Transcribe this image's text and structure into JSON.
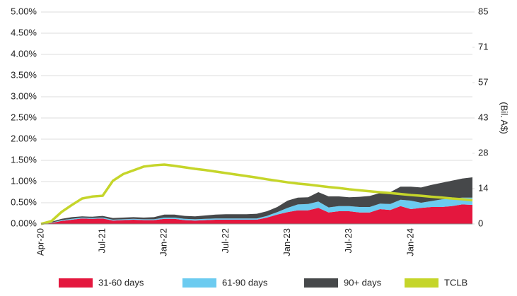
{
  "chart_data": {
    "type": "stacked-area-line",
    "y_axis_label": "(Bil. A$)",
    "categories": [
      "Apr-20",
      null,
      null,
      null,
      null,
      null,
      "Jul-21",
      null,
      null,
      null,
      null,
      null,
      "Jan-22",
      null,
      null,
      null,
      null,
      null,
      "Jul-22",
      null,
      null,
      null,
      null,
      null,
      "Jan-23",
      null,
      null,
      null,
      null,
      null,
      "Jul-23",
      null,
      null,
      null,
      null,
      null,
      "Jan-24",
      null,
      null,
      null,
      null,
      null,
      null
    ],
    "series": [
      {
        "name": "31-60 days",
        "color": "#e4173e",
        "kind": "area",
        "values": [
          0,
          0.02,
          0.07,
          0.1,
          0.13,
          0.12,
          0.13,
          0.08,
          0.09,
          0.1,
          0.09,
          0.09,
          0.12,
          0.12,
          0.09,
          0.08,
          0.09,
          0.1,
          0.1,
          0.1,
          0.1,
          0.1,
          0.15,
          0.22,
          0.28,
          0.32,
          0.32,
          0.38,
          0.27,
          0.3,
          0.3,
          0.27,
          0.27,
          0.35,
          0.33,
          0.42,
          0.35,
          0.38,
          0.4,
          0.4,
          0.42,
          0.46,
          0.45
        ]
      },
      {
        "name": "61-90 days",
        "color": "#6ccbf0",
        "kind": "area",
        "values": [
          0,
          0.01,
          0.02,
          0.02,
          0.02,
          0.02,
          0.02,
          0.02,
          0.02,
          0.02,
          0.02,
          0.02,
          0.03,
          0.03,
          0.03,
          0.03,
          0.03,
          0.03,
          0.03,
          0.03,
          0.03,
          0.03,
          0.04,
          0.06,
          0.1,
          0.14,
          0.15,
          0.15,
          0.12,
          0.12,
          0.12,
          0.13,
          0.13,
          0.13,
          0.14,
          0.15,
          0.2,
          0.12,
          0.14,
          0.18,
          0.18,
          0.16,
          0.17
        ]
      },
      {
        "name": "90+ days",
        "color": "#46484a",
        "kind": "area",
        "values": [
          0,
          0.02,
          0.03,
          0.04,
          0.03,
          0.03,
          0.04,
          0.04,
          0.04,
          0.04,
          0.04,
          0.05,
          0.07,
          0.07,
          0.07,
          0.07,
          0.08,
          0.09,
          0.1,
          0.1,
          0.1,
          0.11,
          0.11,
          0.12,
          0.17,
          0.16,
          0.16,
          0.22,
          0.26,
          0.23,
          0.21,
          0.24,
          0.26,
          0.25,
          0.28,
          0.31,
          0.33,
          0.36,
          0.38,
          0.39,
          0.42,
          0.45,
          0.48
        ]
      },
      {
        "name": "TCLB",
        "color": "#c5d52a",
        "kind": "line",
        "axis": "y2",
        "values": [
          0,
          1.1,
          4.8,
          7.6,
          10.2,
          11,
          11.3,
          17.3,
          20,
          21.5,
          23,
          23.5,
          23.8,
          23.3,
          22.7,
          22.1,
          21.6,
          21.0,
          20.4,
          19.8,
          19.2,
          18.6,
          17.9,
          17.3,
          16.7,
          16.2,
          15.8,
          15.3,
          14.8,
          14.4,
          13.9,
          13.5,
          13.1,
          12.7,
          12.4,
          12.0,
          11.6,
          11.3,
          10.9,
          10.6,
          10.2,
          9.9,
          9.5
        ]
      }
    ],
    "ylim": [
      0,
      5
    ],
    "yticks": [
      {
        "value": 0,
        "label": "0.00%"
      },
      {
        "value": 0.5,
        "label": "0.50%"
      },
      {
        "value": 1,
        "label": "1.00%"
      },
      {
        "value": 1.5,
        "label": "1.50%"
      },
      {
        "value": 2,
        "label": "2.00%"
      },
      {
        "value": 2.5,
        "label": "2.50%"
      },
      {
        "value": 3,
        "label": "3.00%"
      },
      {
        "value": 3.5,
        "label": "3.50%"
      },
      {
        "value": 4,
        "label": "4.00%"
      },
      {
        "value": 4.5,
        "label": "4.50%"
      },
      {
        "value": 5,
        "label": "5.00%"
      }
    ],
    "y2lim": [
      0,
      85
    ],
    "y2ticks": [
      0,
      {
        "value": 14.1667,
        "label": "14"
      },
      {
        "value": 28.3333,
        "label": "28"
      },
      {
        "value": 42.5,
        "label": "43"
      },
      {
        "value": 56.6667,
        "label": "57"
      },
      {
        "value": 70.8333,
        "label": "71"
      },
      85
    ],
    "grid": true
  }
}
